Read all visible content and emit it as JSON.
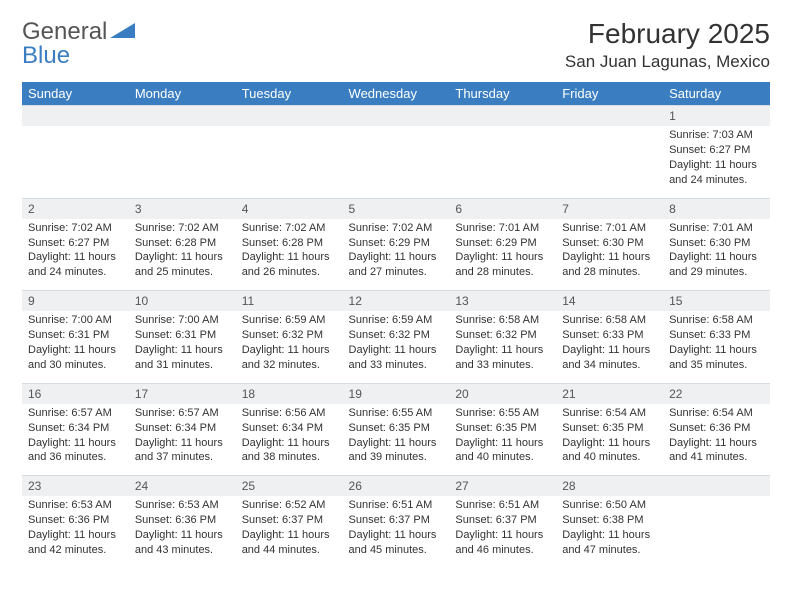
{
  "logo": {
    "word1": "General",
    "word2": "Blue"
  },
  "title": "February 2025",
  "location": "San Juan Lagunas, Mexico",
  "header_bg": "#3a7ec1",
  "daynum_bg": "#eef0f2",
  "columns": [
    "Sunday",
    "Monday",
    "Tuesday",
    "Wednesday",
    "Thursday",
    "Friday",
    "Saturday"
  ],
  "weeks": [
    [
      null,
      null,
      null,
      null,
      null,
      null,
      {
        "n": "1",
        "sr": "7:03 AM",
        "ss": "6:27 PM",
        "dl": "11 hours and 24 minutes."
      }
    ],
    [
      {
        "n": "2",
        "sr": "7:02 AM",
        "ss": "6:27 PM",
        "dl": "11 hours and 24 minutes."
      },
      {
        "n": "3",
        "sr": "7:02 AM",
        "ss": "6:28 PM",
        "dl": "11 hours and 25 minutes."
      },
      {
        "n": "4",
        "sr": "7:02 AM",
        "ss": "6:28 PM",
        "dl": "11 hours and 26 minutes."
      },
      {
        "n": "5",
        "sr": "7:02 AM",
        "ss": "6:29 PM",
        "dl": "11 hours and 27 minutes."
      },
      {
        "n": "6",
        "sr": "7:01 AM",
        "ss": "6:29 PM",
        "dl": "11 hours and 28 minutes."
      },
      {
        "n": "7",
        "sr": "7:01 AM",
        "ss": "6:30 PM",
        "dl": "11 hours and 28 minutes."
      },
      {
        "n": "8",
        "sr": "7:01 AM",
        "ss": "6:30 PM",
        "dl": "11 hours and 29 minutes."
      }
    ],
    [
      {
        "n": "9",
        "sr": "7:00 AM",
        "ss": "6:31 PM",
        "dl": "11 hours and 30 minutes."
      },
      {
        "n": "10",
        "sr": "7:00 AM",
        "ss": "6:31 PM",
        "dl": "11 hours and 31 minutes."
      },
      {
        "n": "11",
        "sr": "6:59 AM",
        "ss": "6:32 PM",
        "dl": "11 hours and 32 minutes."
      },
      {
        "n": "12",
        "sr": "6:59 AM",
        "ss": "6:32 PM",
        "dl": "11 hours and 33 minutes."
      },
      {
        "n": "13",
        "sr": "6:58 AM",
        "ss": "6:32 PM",
        "dl": "11 hours and 33 minutes."
      },
      {
        "n": "14",
        "sr": "6:58 AM",
        "ss": "6:33 PM",
        "dl": "11 hours and 34 minutes."
      },
      {
        "n": "15",
        "sr": "6:58 AM",
        "ss": "6:33 PM",
        "dl": "11 hours and 35 minutes."
      }
    ],
    [
      {
        "n": "16",
        "sr": "6:57 AM",
        "ss": "6:34 PM",
        "dl": "11 hours and 36 minutes."
      },
      {
        "n": "17",
        "sr": "6:57 AM",
        "ss": "6:34 PM",
        "dl": "11 hours and 37 minutes."
      },
      {
        "n": "18",
        "sr": "6:56 AM",
        "ss": "6:34 PM",
        "dl": "11 hours and 38 minutes."
      },
      {
        "n": "19",
        "sr": "6:55 AM",
        "ss": "6:35 PM",
        "dl": "11 hours and 39 minutes."
      },
      {
        "n": "20",
        "sr": "6:55 AM",
        "ss": "6:35 PM",
        "dl": "11 hours and 40 minutes."
      },
      {
        "n": "21",
        "sr": "6:54 AM",
        "ss": "6:35 PM",
        "dl": "11 hours and 40 minutes."
      },
      {
        "n": "22",
        "sr": "6:54 AM",
        "ss": "6:36 PM",
        "dl": "11 hours and 41 minutes."
      }
    ],
    [
      {
        "n": "23",
        "sr": "6:53 AM",
        "ss": "6:36 PM",
        "dl": "11 hours and 42 minutes."
      },
      {
        "n": "24",
        "sr": "6:53 AM",
        "ss": "6:36 PM",
        "dl": "11 hours and 43 minutes."
      },
      {
        "n": "25",
        "sr": "6:52 AM",
        "ss": "6:37 PM",
        "dl": "11 hours and 44 minutes."
      },
      {
        "n": "26",
        "sr": "6:51 AM",
        "ss": "6:37 PM",
        "dl": "11 hours and 45 minutes."
      },
      {
        "n": "27",
        "sr": "6:51 AM",
        "ss": "6:37 PM",
        "dl": "11 hours and 46 minutes."
      },
      {
        "n": "28",
        "sr": "6:50 AM",
        "ss": "6:38 PM",
        "dl": "11 hours and 47 minutes."
      },
      null
    ]
  ],
  "labels": {
    "sunrise": "Sunrise:",
    "sunset": "Sunset:",
    "daylight": "Daylight:"
  }
}
